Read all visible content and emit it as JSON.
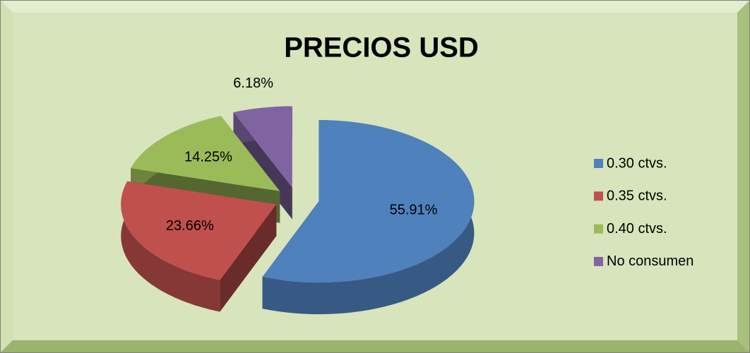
{
  "chart_data": {
    "type": "pie",
    "title": "PRECIOS USD",
    "categories": [
      "0.30 ctvs.",
      "0.35 ctvs.",
      "0.40 ctvs.",
      "No consumen"
    ],
    "values": [
      55.91,
      23.66,
      14.25,
      6.18
    ],
    "value_labels": [
      "55.91%",
      "23.66%",
      "14.25%",
      "6.18%"
    ],
    "colors": [
      "#4f81bd",
      "#c0504d",
      "#9bbb59",
      "#8064a2"
    ],
    "legend": "right"
  }
}
